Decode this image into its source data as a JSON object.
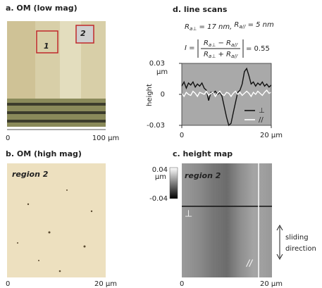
{
  "panels": {
    "a": {
      "title": "a. OM (low mag)",
      "region_1": "1",
      "region_2": "2",
      "x_start": "0",
      "x_end": "100 μm"
    },
    "b": {
      "title": "b. OM (high mag)",
      "label": "region 2",
      "x_start": "0",
      "x_end": "20 μm"
    },
    "c": {
      "title": "c. height map",
      "label": "region 2",
      "cbar_max": "0.04",
      "cbar_unit": "μm",
      "cbar_min": "-0.04",
      "perp": "⊥",
      "par": "//",
      "arrow_label": [
        "sliding",
        "direction"
      ],
      "x_start": "0",
      "x_end": "20 μm"
    }
  },
  "chart_data": {
    "type": "line",
    "title": "d. line scans",
    "roughness": [
      "R",
      "a⊥",
      " = 17 nm, ",
      "R",
      "a//",
      " = 5 nm"
    ],
    "formula": {
      "lhs": "I = ",
      "numerator": [
        "R",
        "a⊥",
        " − R",
        "a//"
      ],
      "denominator": [
        "R",
        "a⊥",
        " + R",
        "a//"
      ],
      "rhs": "= 0.55"
    },
    "ylabel": "height",
    "y_unit": "μm",
    "x": [
      0,
      0.5,
      1,
      1.5,
      2,
      2.5,
      3,
      3.5,
      4,
      4.5,
      5,
      5.5,
      6,
      6.5,
      7,
      7.5,
      8,
      8.5,
      9,
      9.5,
      10,
      10.5,
      11,
      11.5,
      12,
      12.5,
      13,
      13.5,
      14,
      14.5,
      15,
      15.5,
      16,
      16.5,
      17,
      17.5,
      18,
      18.5,
      19,
      19.5,
      20
    ],
    "series": [
      {
        "name": "⊥",
        "color": "#111111",
        "values": [
          0.008,
          0.012,
          0.006,
          0.011,
          0.009,
          0.012,
          0.007,
          0.01,
          0.008,
          0.011,
          0.006,
          0.004,
          -0.006,
          0.002,
          0.001,
          0.003,
          0,
          0.002,
          -0.002,
          -0.012,
          -0.022,
          -0.03,
          -0.028,
          -0.018,
          -0.008,
          0.002,
          0.004,
          0.01,
          0.022,
          0.025,
          0.018,
          0.01,
          0.012,
          0.008,
          0.011,
          0.009,
          0.012,
          0.008,
          0.01,
          0.007,
          0.009
        ]
      },
      {
        "name": "//",
        "color": "#ffffff",
        "values": [
          0.001,
          -0.002,
          0.002,
          0,
          -0.001,
          0.003,
          0.001,
          -0.002,
          0.002,
          0.001,
          0,
          0.003,
          -0.001,
          0.001,
          0.002,
          -0.002,
          0.001,
          0.003,
          0,
          -0.001,
          0.002,
          0.001,
          -0.002,
          0.001,
          0.003,
          0,
          0.002,
          -0.001,
          0.001,
          0.003,
          0.001,
          -0.002,
          0.002,
          0,
          0.003,
          0.001,
          -0.001,
          0.002,
          0.004,
          0.001,
          0.002
        ]
      }
    ],
    "xlim": [
      0,
      20
    ],
    "xticks": [
      0,
      {
        "value": 20,
        "label": "20 μm"
      }
    ],
    "ylim": [
      -0.03,
      0.03
    ],
    "yticks": [
      0.03,
      0,
      -0.03
    ],
    "background": "#a9a9a9"
  }
}
